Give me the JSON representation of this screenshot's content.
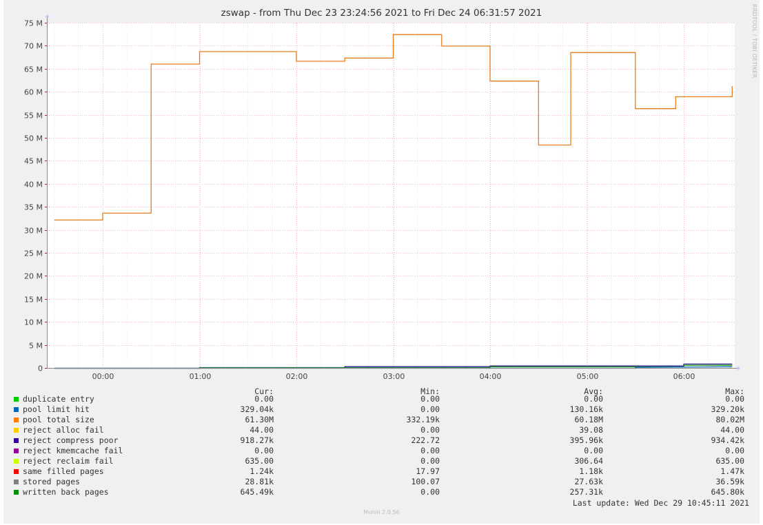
{
  "chart_data": {
    "type": "line",
    "title": "zswap - from Thu Dec 23 23:24:56 2021 to Fri Dec 24 06:31:57 2021",
    "side_label": "RRDTOOL / TOBI OETIKER",
    "ylim": [
      0,
      75000000
    ],
    "y_ticks": [
      {
        "value": 0,
        "label": "0"
      },
      {
        "value": 5000000,
        "label": "5 M"
      },
      {
        "value": 10000000,
        "label": "10 M"
      },
      {
        "value": 15000000,
        "label": "15 M"
      },
      {
        "value": 20000000,
        "label": "20 M"
      },
      {
        "value": 25000000,
        "label": "25 M"
      },
      {
        "value": 30000000,
        "label": "30 M"
      },
      {
        "value": 35000000,
        "label": "35 M"
      },
      {
        "value": 40000000,
        "label": "40 M"
      },
      {
        "value": 45000000,
        "label": "45 M"
      },
      {
        "value": 50000000,
        "label": "50 M"
      },
      {
        "value": 55000000,
        "label": "55 M"
      },
      {
        "value": 60000000,
        "label": "60 M"
      },
      {
        "value": 65000000,
        "label": "65 M"
      },
      {
        "value": 70000000,
        "label": "70 M"
      },
      {
        "value": 75000000,
        "label": "75 M"
      }
    ],
    "x_ticks": [
      "00:00",
      "01:00",
      "02:00",
      "03:00",
      "04:00",
      "05:00",
      "06:00"
    ],
    "grid": true,
    "series": [
      {
        "name": "pool total size",
        "color": "#e87d1e",
        "x": [
          "23:30",
          "00:00",
          "00:00",
          "00:30",
          "00:30",
          "01:00",
          "01:00",
          "01:30",
          "02:00",
          "02:00",
          "02:30",
          "02:30",
          "03:00",
          "03:00",
          "03:30",
          "03:30",
          "04:00",
          "04:00",
          "04:30",
          "04:30",
          "04:50",
          "04:50",
          "05:30",
          "05:30",
          "05:55",
          "05:55",
          "06:30",
          "06:30"
        ],
        "values": [
          32200000,
          32200000,
          33700000,
          33700000,
          66100000,
          66100000,
          68800000,
          68800000,
          68800000,
          66700000,
          66700000,
          67400000,
          67400000,
          72500000,
          72500000,
          70000000,
          70000000,
          62400000,
          62400000,
          48500000,
          48500000,
          68600000,
          68600000,
          56400000,
          56400000,
          59000000,
          59000000,
          61300000
        ]
      },
      {
        "name": "reject compress poor",
        "color": "#2a1a8c",
        "x": [
          "23:30",
          "01:00",
          "01:00",
          "02:30",
          "02:30",
          "04:00",
          "04:00",
          "06:00",
          "06:00",
          "06:30"
        ],
        "values": [
          0,
          0,
          150000,
          150000,
          350000,
          350000,
          500000,
          500000,
          918270,
          918270
        ]
      },
      {
        "name": "written back pages",
        "color": "#118f11",
        "x": [
          "23:30",
          "01:00",
          "01:00",
          "04:00",
          "04:00",
          "06:00",
          "06:00",
          "06:30"
        ],
        "values": [
          0,
          0,
          100000,
          100000,
          300000,
          300000,
          645490,
          645490
        ]
      },
      {
        "name": "pool limit hit",
        "color": "#0a66b3",
        "x": [
          "23:30",
          "05:30",
          "05:30",
          "06:30"
        ],
        "values": [
          0,
          0,
          200000,
          329040
        ]
      }
    ]
  },
  "legend": {
    "headers": {
      "cur": "Cur:",
      "min": "Min:",
      "avg": "Avg:",
      "max": "Max:"
    },
    "rows": [
      {
        "name": "duplicate entry",
        "color": "#00cc00",
        "cur": "0.00",
        "min": "0.00",
        "avg": "0.00",
        "max": "0.00"
      },
      {
        "name": "pool limit hit",
        "color": "#0066b3",
        "cur": "329.04k",
        "min": "0.00",
        "avg": "130.16k",
        "max": "329.20k"
      },
      {
        "name": "pool total size",
        "color": "#ff8000",
        "cur": "61.30M",
        "min": "332.19k",
        "avg": "60.18M",
        "max": "80.02M"
      },
      {
        "name": "reject alloc fail",
        "color": "#ffcc00",
        "cur": "44.00",
        "min": "0.00",
        "avg": "39.08",
        "max": "44.00"
      },
      {
        "name": "reject compress poor",
        "color": "#330099",
        "cur": "918.27k",
        "min": "222.72",
        "avg": "395.96k",
        "max": "934.42k"
      },
      {
        "name": "reject kmemcache fail",
        "color": "#990099",
        "cur": "0.00",
        "min": "0.00",
        "avg": "0.00",
        "max": "0.00"
      },
      {
        "name": "reject reclaim fail",
        "color": "#ccff00",
        "cur": "635.00",
        "min": "0.00",
        "avg": "306.64",
        "max": "635.00"
      },
      {
        "name": "same filled pages",
        "color": "#ff0000",
        "cur": "1.24k",
        "min": "17.97",
        "avg": "1.18k",
        "max": "1.47k"
      },
      {
        "name": "stored pages",
        "color": "#808080",
        "cur": "28.81k",
        "min": "100.07",
        "avg": "27.63k",
        "max": "36.59k"
      },
      {
        "name": "written back pages",
        "color": "#008f00",
        "cur": "645.49k",
        "min": "0.00",
        "avg": "257.31k",
        "max": "645.80k"
      }
    ]
  },
  "last_update": "Last update: Wed Dec 29 10:45:11 2021",
  "footer": "Munin 2.0.56"
}
